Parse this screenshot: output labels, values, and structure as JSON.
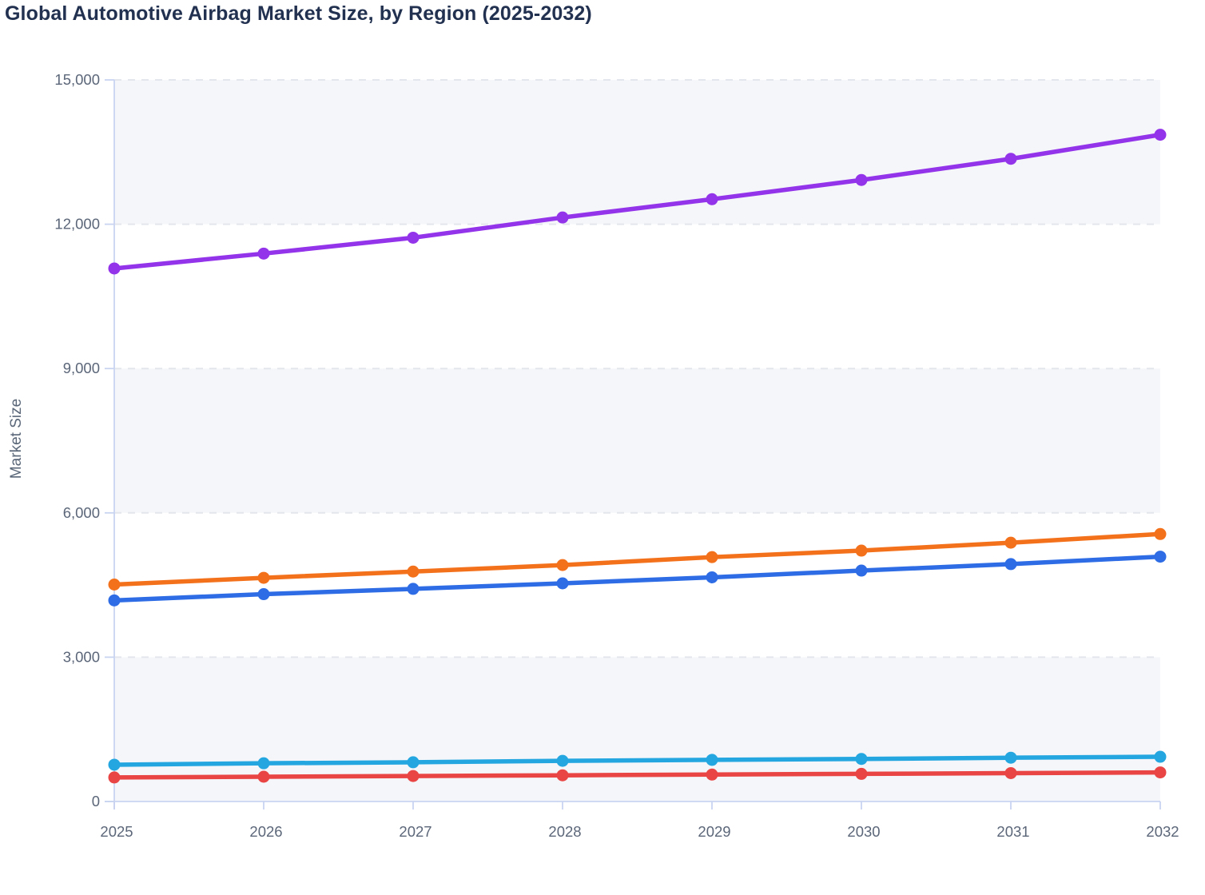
{
  "title": "Global Automotive Airbag Market Size, by Region (2025-2032)",
  "chart_data": {
    "type": "line",
    "title": "Global Automotive Airbag Market Size, by Region (2025-2032)",
    "xlabel": "",
    "ylabel": "Market Size",
    "categories": [
      "2025",
      "2026",
      "2027",
      "2028",
      "2029",
      "2030",
      "2031",
      "2032"
    ],
    "ylim": [
      0,
      15000
    ],
    "y_ticks": [
      {
        "label": "0",
        "value": 0
      },
      {
        "label": "3,000",
        "value": 3000
      },
      {
        "label": "6,000",
        "value": 6000
      },
      {
        "label": "9,000",
        "value": 9000
      },
      {
        "label": "12,000",
        "value": 12000
      },
      {
        "label": "15,000",
        "value": 15000
      }
    ],
    "grid": "dashed horizontal gridlines with alternating background bands",
    "legend": "none",
    "series": [
      {
        "name": "purple-series",
        "color": "#9333ea",
        "values": [
          11080,
          11390,
          11720,
          12140,
          12520,
          12920,
          13360,
          13860
        ]
      },
      {
        "name": "orange-series",
        "color": "#f4711c",
        "values": [
          4510,
          4650,
          4780,
          4915,
          5080,
          5215,
          5380,
          5560
        ]
      },
      {
        "name": "blue-series",
        "color": "#2d6ce5",
        "values": [
          4180,
          4310,
          4420,
          4535,
          4660,
          4800,
          4935,
          5090
        ]
      },
      {
        "name": "cyan-series",
        "color": "#24a7e0",
        "values": [
          765,
          795,
          815,
          845,
          865,
          885,
          910,
          930
        ]
      },
      {
        "name": "red-series",
        "color": "#e94545",
        "values": [
          500,
          515,
          530,
          545,
          560,
          575,
          590,
          605
        ]
      }
    ],
    "style": {
      "title_color": "#223150",
      "tick_label_color": "#5b6679",
      "axis_line_color": "#c9d4f0",
      "gridline_color": "#e3e6ec",
      "band_fill": "#f4f6f9",
      "plot_background": "#ffffff"
    }
  }
}
